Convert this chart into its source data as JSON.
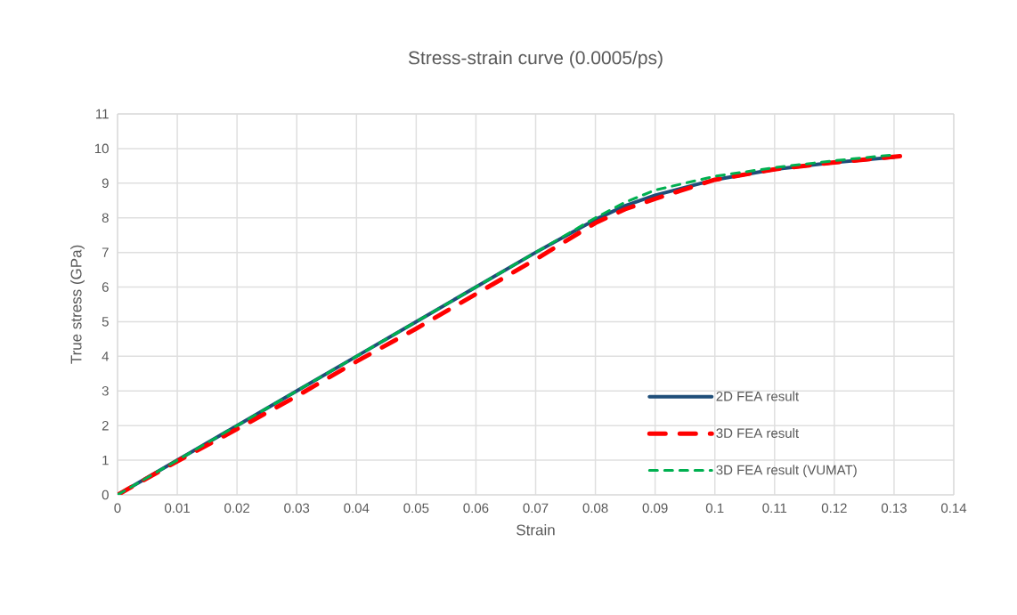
{
  "chart_data": {
    "type": "line",
    "title": "Stress-strain curve (0.0005/ps)",
    "xlabel": "Strain",
    "ylabel": "True stress (GPa)",
    "xlim": [
      0,
      0.14
    ],
    "xticks": [
      0,
      0.01,
      0.02,
      0.03,
      0.04,
      0.05,
      0.06,
      0.07,
      0.08,
      0.09,
      0.1,
      0.11,
      0.12,
      0.13,
      0.14
    ],
    "ylim": [
      0,
      11
    ],
    "yticks": [
      0,
      1,
      2,
      3,
      4,
      5,
      6,
      7,
      8,
      9,
      10,
      11
    ],
    "grid": true,
    "legend": "right",
    "marker": "none",
    "series": [
      {
        "name": "2D FEA result",
        "color": "#1f4e79",
        "line_style": "solid",
        "x": [
          0,
          0.01,
          0.02,
          0.03,
          0.04,
          0.05,
          0.06,
          0.07,
          0.08,
          0.085,
          0.09,
          0.1,
          0.11,
          0.12,
          0.13
        ],
        "values": [
          0,
          1.0,
          2.0,
          3.0,
          4.0,
          5.0,
          6.0,
          7.0,
          7.95,
          8.35,
          8.65,
          9.1,
          9.4,
          9.6,
          9.75
        ]
      },
      {
        "name": "3D FEA result",
        "color": "#ff0000",
        "line_style": "dashed",
        "x": [
          0,
          0.01,
          0.02,
          0.03,
          0.04,
          0.05,
          0.06,
          0.07,
          0.08,
          0.085,
          0.09,
          0.1,
          0.11,
          0.12,
          0.131
        ],
        "values": [
          0,
          0.97,
          1.9,
          2.85,
          3.85,
          4.8,
          5.8,
          6.8,
          7.85,
          8.25,
          8.55,
          9.1,
          9.4,
          9.6,
          9.78
        ]
      },
      {
        "name": "3D FEA result (VUMAT)",
        "color": "#00b050",
        "line_style": "dashed",
        "x": [
          0,
          0.01,
          0.02,
          0.03,
          0.04,
          0.05,
          0.06,
          0.07,
          0.08,
          0.085,
          0.09,
          0.1,
          0.11,
          0.12,
          0.13
        ],
        "values": [
          0,
          1.0,
          2.0,
          3.0,
          4.0,
          5.0,
          6.0,
          7.0,
          8.0,
          8.45,
          8.8,
          9.2,
          9.45,
          9.65,
          9.82
        ]
      }
    ]
  }
}
